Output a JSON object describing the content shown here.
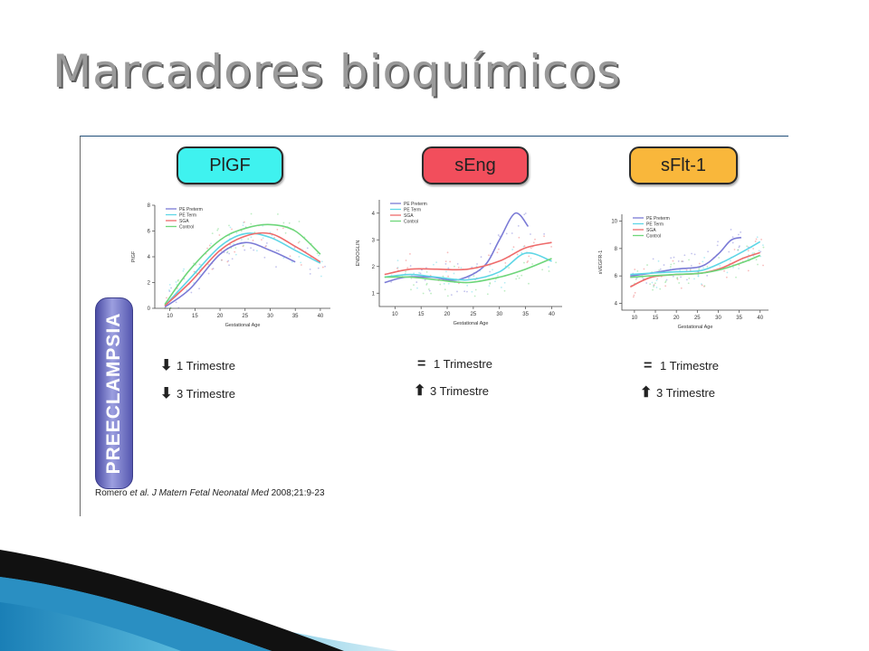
{
  "slide": {
    "title": "Marcadores bioquímicos"
  },
  "side_label": "PREECLAMPSIA",
  "citation": {
    "authors": "Romero",
    "etal": "et al.",
    "journal": "J Matern Fetal Neonatal Med",
    "ref": "2008;21:9-23"
  },
  "colors": {
    "pe_preterm": "#7b7bd6",
    "pe_term": "#5fd6e6",
    "sga": "#ee6b6b",
    "control": "#6ed67a"
  },
  "chart_data": [
    {
      "type": "line",
      "title": "PlGF",
      "title_bg": "#3ff2ef",
      "xlabel": "Gestational Age",
      "ylabel": "PlGF",
      "xlim": [
        7,
        42
      ],
      "ylim": [
        0,
        8
      ],
      "xticks": [
        10,
        15,
        20,
        25,
        30,
        35,
        40
      ],
      "yticks": [
        0,
        2,
        4,
        6,
        8
      ],
      "legend_position": "top-left",
      "series": [
        {
          "name": "PE Preterm",
          "color": "#7b7bd6",
          "x": [
            9,
            14,
            20,
            25,
            30,
            35
          ],
          "y": [
            0.1,
            1.5,
            4.2,
            5.1,
            4.5,
            3.6
          ]
        },
        {
          "name": "PE Term",
          "color": "#5fd6e6",
          "x": [
            9,
            14,
            20,
            25,
            30,
            35,
            40
          ],
          "y": [
            0.2,
            2.3,
            4.8,
            5.8,
            5.5,
            4.5,
            3.5
          ]
        },
        {
          "name": "SGA",
          "color": "#ee6b6b",
          "x": [
            9,
            14,
            20,
            25,
            30,
            35,
            40
          ],
          "y": [
            0.2,
            2.0,
            4.5,
            5.6,
            5.8,
            4.8,
            3.6
          ]
        },
        {
          "name": "Control",
          "color": "#6ed67a",
          "x": [
            9,
            14,
            20,
            25,
            30,
            35,
            40
          ],
          "y": [
            0.3,
            3.0,
            5.3,
            6.2,
            6.5,
            6.0,
            4.2
          ]
        }
      ],
      "trends": [
        {
          "symbol": "down",
          "label": "1 Trimestre"
        },
        {
          "symbol": "down",
          "label": "3 Trimestre"
        }
      ]
    },
    {
      "type": "line",
      "title": "sEng",
      "title_bg": "#f24e5c",
      "xlabel": "Gestational Age",
      "ylabel": "ENDOGLIN",
      "xlim": [
        7,
        42
      ],
      "ylim": [
        0.5,
        4.5
      ],
      "xticks": [
        10,
        15,
        20,
        25,
        30,
        35,
        40
      ],
      "yticks": [
        1,
        2,
        3,
        4
      ],
      "legend_position": "top-left",
      "series": [
        {
          "name": "PE Preterm",
          "color": "#7b7bd6",
          "x": [
            8,
            12,
            17,
            22,
            27,
            30,
            33,
            35.5
          ],
          "y": [
            1.4,
            1.6,
            1.6,
            1.5,
            2.0,
            3.0,
            4.0,
            3.5
          ]
        },
        {
          "name": "PE Term",
          "color": "#5fd6e6",
          "x": [
            8,
            13,
            18,
            24,
            30,
            35,
            40
          ],
          "y": [
            1.6,
            1.7,
            1.6,
            1.5,
            1.8,
            2.5,
            2.2
          ]
        },
        {
          "name": "SGA",
          "color": "#ee6b6b",
          "x": [
            8,
            13,
            18,
            24,
            30,
            35,
            40
          ],
          "y": [
            1.7,
            1.9,
            1.9,
            1.9,
            2.2,
            2.7,
            2.9
          ]
        },
        {
          "name": "Control",
          "color": "#6ed67a",
          "x": [
            8,
            13,
            18,
            24,
            30,
            35,
            40
          ],
          "y": [
            1.6,
            1.6,
            1.5,
            1.4,
            1.6,
            1.9,
            2.3
          ]
        }
      ],
      "trends": [
        {
          "symbol": "equal",
          "label": "1 Trimestre"
        },
        {
          "symbol": "up",
          "label": "3 Trimestre"
        }
      ]
    },
    {
      "type": "line",
      "title": "sFlt-1",
      "title_bg": "#f9b73b",
      "xlabel": "Gestational Age",
      "ylabel": "sVEGFR-1",
      "xlim": [
        7,
        42
      ],
      "ylim": [
        3.5,
        10.5
      ],
      "xticks": [
        10,
        15,
        20,
        25,
        30,
        35,
        40
      ],
      "yticks": [
        4,
        6,
        8,
        10
      ],
      "legend_position": "top-left",
      "series": [
        {
          "name": "PE Preterm",
          "color": "#7b7bd6",
          "x": [
            9,
            14,
            20,
            26,
            30,
            33,
            35.5
          ],
          "y": [
            6.0,
            6.2,
            6.5,
            6.7,
            7.6,
            8.6,
            8.8
          ]
        },
        {
          "name": "PE Term",
          "color": "#5fd6e6",
          "x": [
            9,
            14,
            20,
            26,
            31,
            36,
            40
          ],
          "y": [
            6.1,
            6.2,
            6.3,
            6.4,
            7.0,
            7.8,
            8.5
          ]
        },
        {
          "name": "SGA",
          "color": "#ee6b6b",
          "x": [
            9,
            14,
            20,
            26,
            31,
            36,
            40
          ],
          "y": [
            5.2,
            5.9,
            6.1,
            6.2,
            6.6,
            7.3,
            7.7
          ]
        },
        {
          "name": "Control",
          "color": "#6ed67a",
          "x": [
            9,
            14,
            20,
            26,
            31,
            36,
            40
          ],
          "y": [
            5.9,
            6.0,
            6.1,
            6.2,
            6.5,
            7.0,
            7.5
          ]
        }
      ],
      "trends": [
        {
          "symbol": "equal",
          "label": "1 Trimestre"
        },
        {
          "symbol": "up",
          "label": "3 Trimestre"
        }
      ]
    }
  ]
}
